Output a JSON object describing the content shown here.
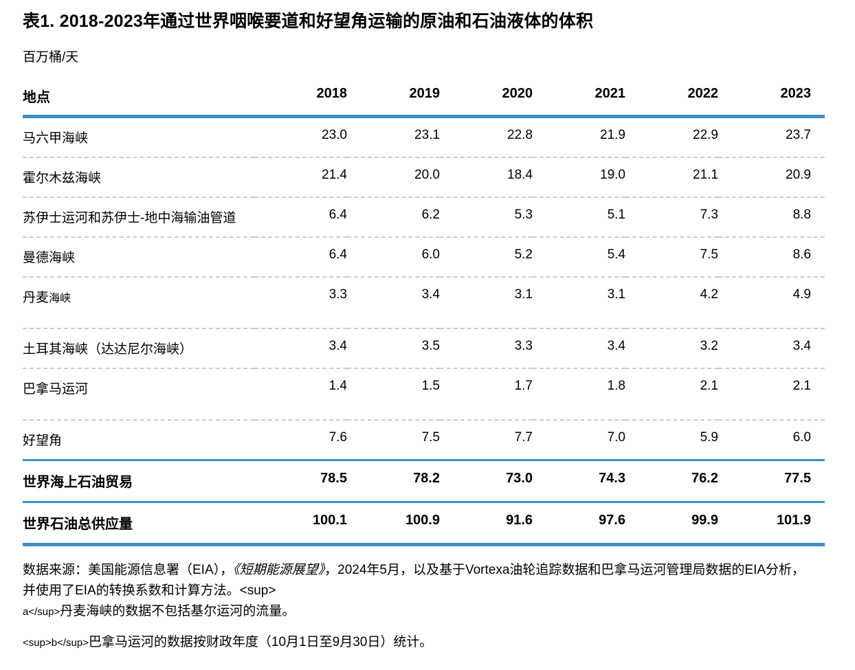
{
  "page": {
    "title": "表1. 2018-2023年通过世界咽喉要道和好望角运输的原油和石油液体的体积",
    "unit_label": "百万桶/天"
  },
  "colors": {
    "accent_blue": "#3d8ec5",
    "divider_gray": "#cccccc"
  },
  "table": {
    "header": {
      "location": "地点",
      "years": [
        "2018",
        "2019",
        "2020",
        "2021",
        "2022",
        "2023"
      ]
    },
    "rows": [
      {
        "label": "马六甲海峡",
        "values": [
          "23.0",
          "23.1",
          "22.8",
          "21.9",
          "22.9",
          "23.7"
        ]
      },
      {
        "label": "霍尔木兹海峡",
        "values": [
          "21.4",
          "20.0",
          "18.4",
          "19.0",
          "21.1",
          "20.9"
        ]
      },
      {
        "label": "苏伊士运河和苏伊士-地中海输油管道",
        "values": [
          "6.4",
          "6.2",
          "5.3",
          "5.1",
          "7.3",
          "8.8"
        ]
      },
      {
        "label": "曼德海峡",
        "values": [
          "6.4",
          "6.0",
          "5.2",
          "5.4",
          "7.5",
          "8.6"
        ]
      },
      {
        "label_main": "丹麦",
        "label_small": "海峡",
        "values": [
          "3.3",
          "3.4",
          "3.1",
          "3.1",
          "4.2",
          "4.9"
        ]
      },
      {
        "label": "土耳其海峡（达达尼尔海峡）",
        "values": [
          "3.4",
          "3.5",
          "3.3",
          "3.4",
          "3.2",
          "3.4"
        ]
      },
      {
        "label": "巴拿马运河",
        "values": [
          "1.4",
          "1.5",
          "1.7",
          "1.8",
          "2.1",
          "2.1"
        ]
      },
      {
        "label": "好望角",
        "values": [
          "7.6",
          "7.5",
          "7.7",
          "7.0",
          "5.9",
          "6.0"
        ]
      },
      {
        "label": "世界海上石油贸易",
        "values": [
          "78.5",
          "78.2",
          "73.0",
          "74.3",
          "76.2",
          "77.5"
        ]
      },
      {
        "label": "世界石油总供应量",
        "values": [
          "100.1",
          "100.9",
          "91.6",
          "97.6",
          "99.9",
          "101.9"
        ]
      }
    ]
  },
  "footnotes": {
    "source": {
      "seg1": "数据来源：美国能源信息署（EIA），",
      "seg2_italic": "《短期能源展望》",
      "seg3": "，2024年5月，以及基于Vortexa油轮追踪数据和巴拿马运河管理局数据的EIA分析，并使用了EIA的转换系数和计算方法。",
      "seg4_literal": "<sup>",
      "seg5_literal_small": "a</sup>",
      "seg6": "丹麦海峡的数据不包括基尔运河的流量。"
    },
    "note_b": {
      "seg1_literal_small": "<sup>b</sup>",
      "seg2": "巴拿马运河的数据按财政年度（10月1日至9月30日）统计。"
    }
  }
}
